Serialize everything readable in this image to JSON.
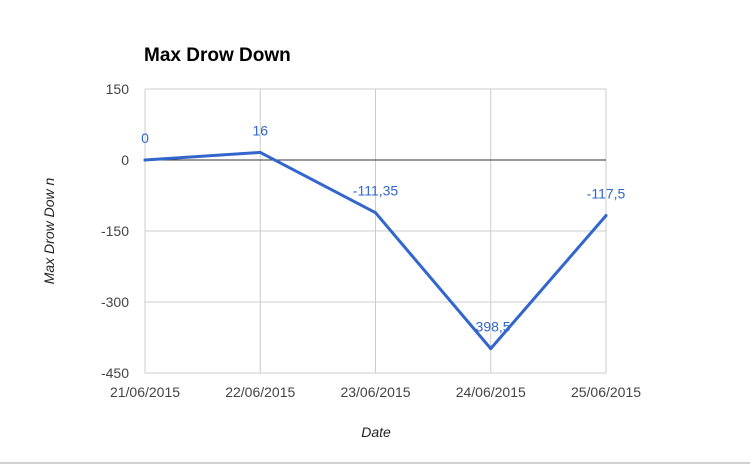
{
  "chart_data": {
    "type": "line",
    "title": "Max Drow Down",
    "xlabel": "Date",
    "ylabel": "Max Drow Dow n",
    "categories": [
      "21/06/2015",
      "22/06/2015",
      "23/06/2015",
      "24/06/2015",
      "25/06/2015"
    ],
    "series": [
      {
        "values": [
          0,
          16,
          -111.35,
          -398.5,
          -117.5
        ],
        "labels": [
          "0",
          "16",
          "-111,35",
          "-398,5",
          "-117,5"
        ],
        "color": "#3366cc"
      }
    ],
    "ylim": [
      -450,
      150
    ],
    "yticks": [
      150,
      0,
      -150,
      -300,
      -450
    ],
    "ytick_labels": [
      "150",
      "0",
      "-150",
      "-300",
      "-450"
    ],
    "grid": true,
    "legend": "none"
  }
}
